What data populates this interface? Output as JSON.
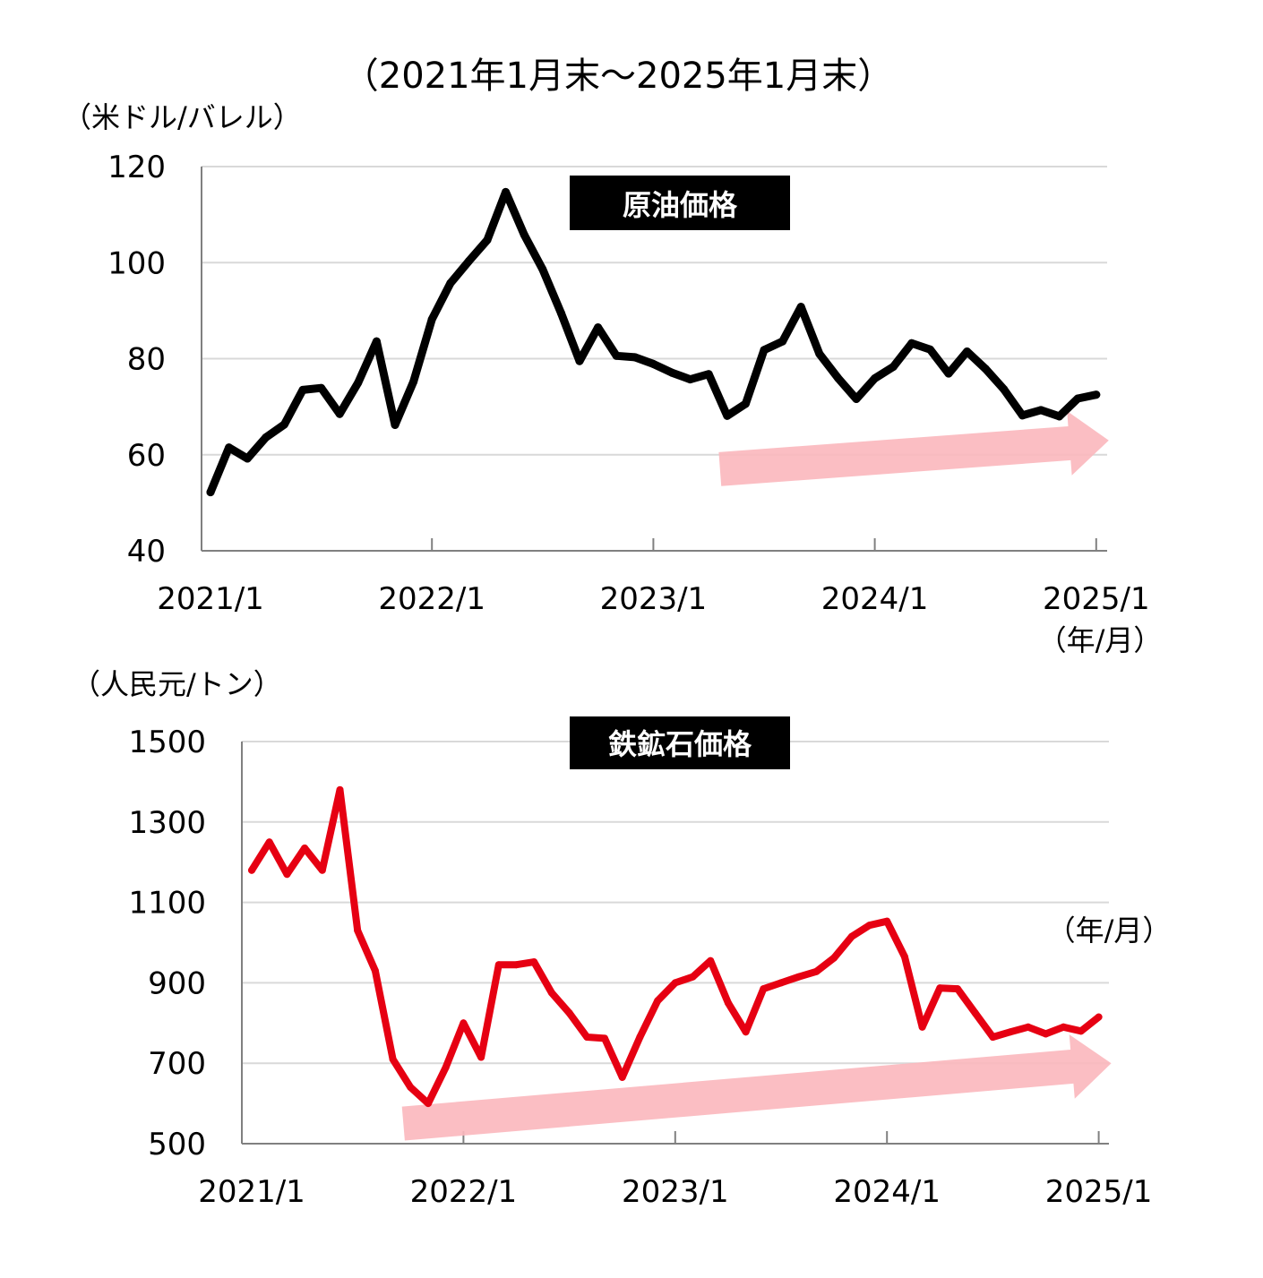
{
  "header": {
    "period": "（2021年1月末～2025年1月末）"
  },
  "chart_data": [
    {
      "type": "line",
      "title": "原油価格",
      "ylabel": "（米ドル/バレル）",
      "xlabel": "（年/月）",
      "ylim": [
        40,
        120
      ],
      "yticks": [
        "40",
        "60",
        "80",
        "100",
        "120"
      ],
      "xticks": [
        "2021/1",
        "2022/1",
        "2023/1",
        "2024/1",
        "2025/1"
      ],
      "grid": true,
      "colors": {
        "line": "#000000",
        "arrow": "#fbb7bd",
        "title_bg": "#000000",
        "title_fg": "#ffffff"
      },
      "series": [
        {
          "x": [
            "2021/1",
            "2021/2",
            "2021/3",
            "2021/4",
            "2021/5",
            "2021/6",
            "2021/7",
            "2021/8",
            "2021/9",
            "2021/10",
            "2021/11",
            "2021/12",
            "2022/1",
            "2022/2",
            "2022/3",
            "2022/4",
            "2022/5",
            "2022/6",
            "2022/7",
            "2022/8",
            "2022/9",
            "2022/10",
            "2022/11",
            "2022/12",
            "2023/1",
            "2023/2",
            "2023/3",
            "2023/4",
            "2023/5",
            "2023/6",
            "2023/7",
            "2023/8",
            "2023/9",
            "2023/10",
            "2023/11",
            "2023/12",
            "2024/1",
            "2024/2",
            "2024/3",
            "2024/4",
            "2024/5",
            "2024/6",
            "2024/7",
            "2024/8",
            "2024/9",
            "2024/10",
            "2024/11",
            "2024/12",
            "2025/1"
          ],
          "values": [
            52.2,
            61.5,
            59.2,
            63.6,
            66.3,
            73.5,
            73.9,
            68.5,
            75.0,
            83.6,
            66.2,
            75.2,
            88.2,
            95.7,
            100.3,
            104.7,
            114.7,
            105.8,
            98.6,
            89.5,
            79.5,
            86.5,
            80.6,
            80.3,
            78.9,
            77.1,
            75.7,
            76.8,
            68.1,
            70.6,
            81.8,
            83.6,
            90.8,
            81.0,
            76.0,
            71.6,
            75.9,
            78.3,
            83.2,
            81.9,
            76.9,
            81.5,
            77.9,
            73.6,
            68.2,
            69.3,
            68.0,
            71.7,
            72.5
          ]
        }
      ],
      "trend_arrow": {
        "direction": "up",
        "from_date": "2023/5",
        "to_date": "2025/1",
        "from_value": 57,
        "to_value": 63
      }
    },
    {
      "type": "line",
      "title": "鉄鉱石価格",
      "ylabel": "（人民元/トン）",
      "xlabel": "（年/月）",
      "ylim": [
        500,
        1500
      ],
      "yticks": [
        "500",
        "700",
        "900",
        "1100",
        "1300",
        "1500"
      ],
      "xticks": [
        "2021/1",
        "2022/1",
        "2023/1",
        "2024/1",
        "2025/1"
      ],
      "grid": true,
      "colors": {
        "line": "#e60012",
        "arrow": "#fbb7bd",
        "title_bg": "#000000",
        "title_fg": "#ffffff"
      },
      "series": [
        {
          "x": [
            "2021/1",
            "2021/2",
            "2021/3",
            "2021/4",
            "2021/5",
            "2021/6",
            "2021/7",
            "2021/8",
            "2021/9",
            "2021/10",
            "2021/11",
            "2021/12",
            "2022/1",
            "2022/2",
            "2022/3",
            "2022/4",
            "2022/5",
            "2022/6",
            "2022/7",
            "2022/8",
            "2022/9",
            "2022/10",
            "2022/11",
            "2022/12",
            "2023/1",
            "2023/2",
            "2023/3",
            "2023/4",
            "2023/5",
            "2023/6",
            "2023/7",
            "2023/8",
            "2023/9",
            "2023/10",
            "2023/11",
            "2023/12",
            "2024/1",
            "2024/2",
            "2024/3",
            "2024/4",
            "2024/5",
            "2024/6",
            "2024/7",
            "2024/8",
            "2024/9",
            "2024/10",
            "2024/11",
            "2024/12",
            "2025/1"
          ],
          "values": [
            1180,
            1250,
            1170,
            1235,
            1180,
            1380,
            1030,
            930,
            710,
            640,
            600,
            690,
            800,
            715,
            945,
            945,
            952,
            875,
            825,
            765,
            762,
            665,
            765,
            855,
            900,
            915,
            955,
            850,
            778,
            885,
            900,
            915,
            928,
            962,
            1015,
            1043,
            1053,
            965,
            790,
            887,
            885,
            825,
            765,
            778,
            790,
            773,
            790,
            780,
            815
          ]
        }
      ],
      "trend_arrow": {
        "direction": "up",
        "from_date": "2021/10",
        "to_date": "2025/1",
        "from_value": 550,
        "to_value": 700
      }
    }
  ]
}
